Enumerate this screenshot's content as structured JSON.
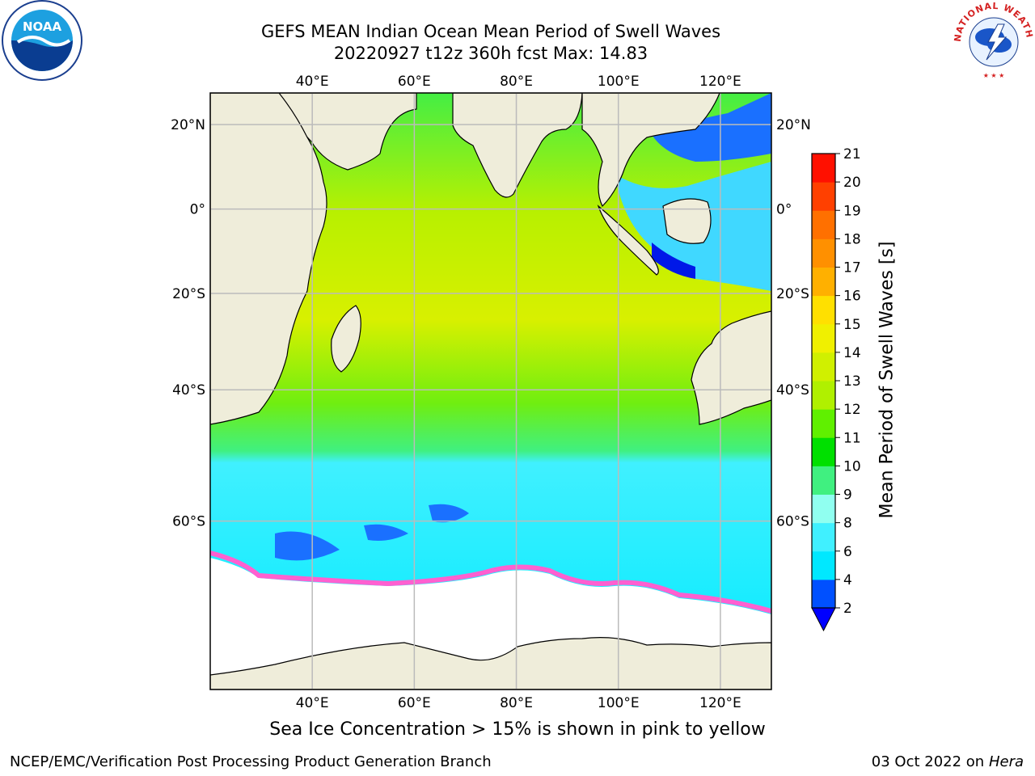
{
  "header": {
    "title_line1": "GEFS MEAN Indian Ocean Mean Period of Swell Waves",
    "title_line2": "20220927 t12z 360h fcst   Max: 14.83"
  },
  "map": {
    "lon_labels": [
      "40°E",
      "60°E",
      "80°E",
      "100°E",
      "120°E"
    ],
    "lat_labels": [
      "20°N",
      "0°",
      "20°S",
      "40°S",
      "60°S"
    ],
    "lon_values": [
      40,
      60,
      80,
      100,
      120
    ],
    "lat_values": [
      20,
      0,
      -20,
      -40,
      -60
    ],
    "lon_range": [
      20,
      130
    ],
    "lat_range": [
      -75,
      27
    ],
    "projection": "mercator",
    "grid": true,
    "colors": {
      "land": "#efedda",
      "ice_free_ocean_south": "#ffffff",
      "frame": "#000000",
      "grid": "#bbbbbb"
    }
  },
  "colorbar": {
    "label": "Mean Period of Swell Waves [s]",
    "ticks": [
      "2",
      "4",
      "6",
      "8",
      "9",
      "10",
      "11",
      "12",
      "13",
      "14",
      "15",
      "16",
      "17",
      "18",
      "19",
      "20",
      "21"
    ],
    "colors": [
      "#0050ff",
      "#00e8ff",
      "#40f0ff",
      "#90fff0",
      "#40f080",
      "#00e000",
      "#60f000",
      "#b0f000",
      "#d0f000",
      "#f0f000",
      "#ffe000",
      "#ffb000",
      "#ff9000",
      "#ff7000",
      "#ff4000",
      "#ff1000"
    ],
    "under_color": "#0000ff",
    "extend": "min"
  },
  "caption": "Sea Ice Concentration > 15% is shown in pink to yellow",
  "footer": {
    "left": "NCEP/EMC/Verification Post Processing Product Generation Branch",
    "date": "03 Oct 2022 on ",
    "host": "Hera"
  },
  "logos": {
    "noaa": "NOAA",
    "nws": "NATIONAL WEATHER SERVICE"
  }
}
